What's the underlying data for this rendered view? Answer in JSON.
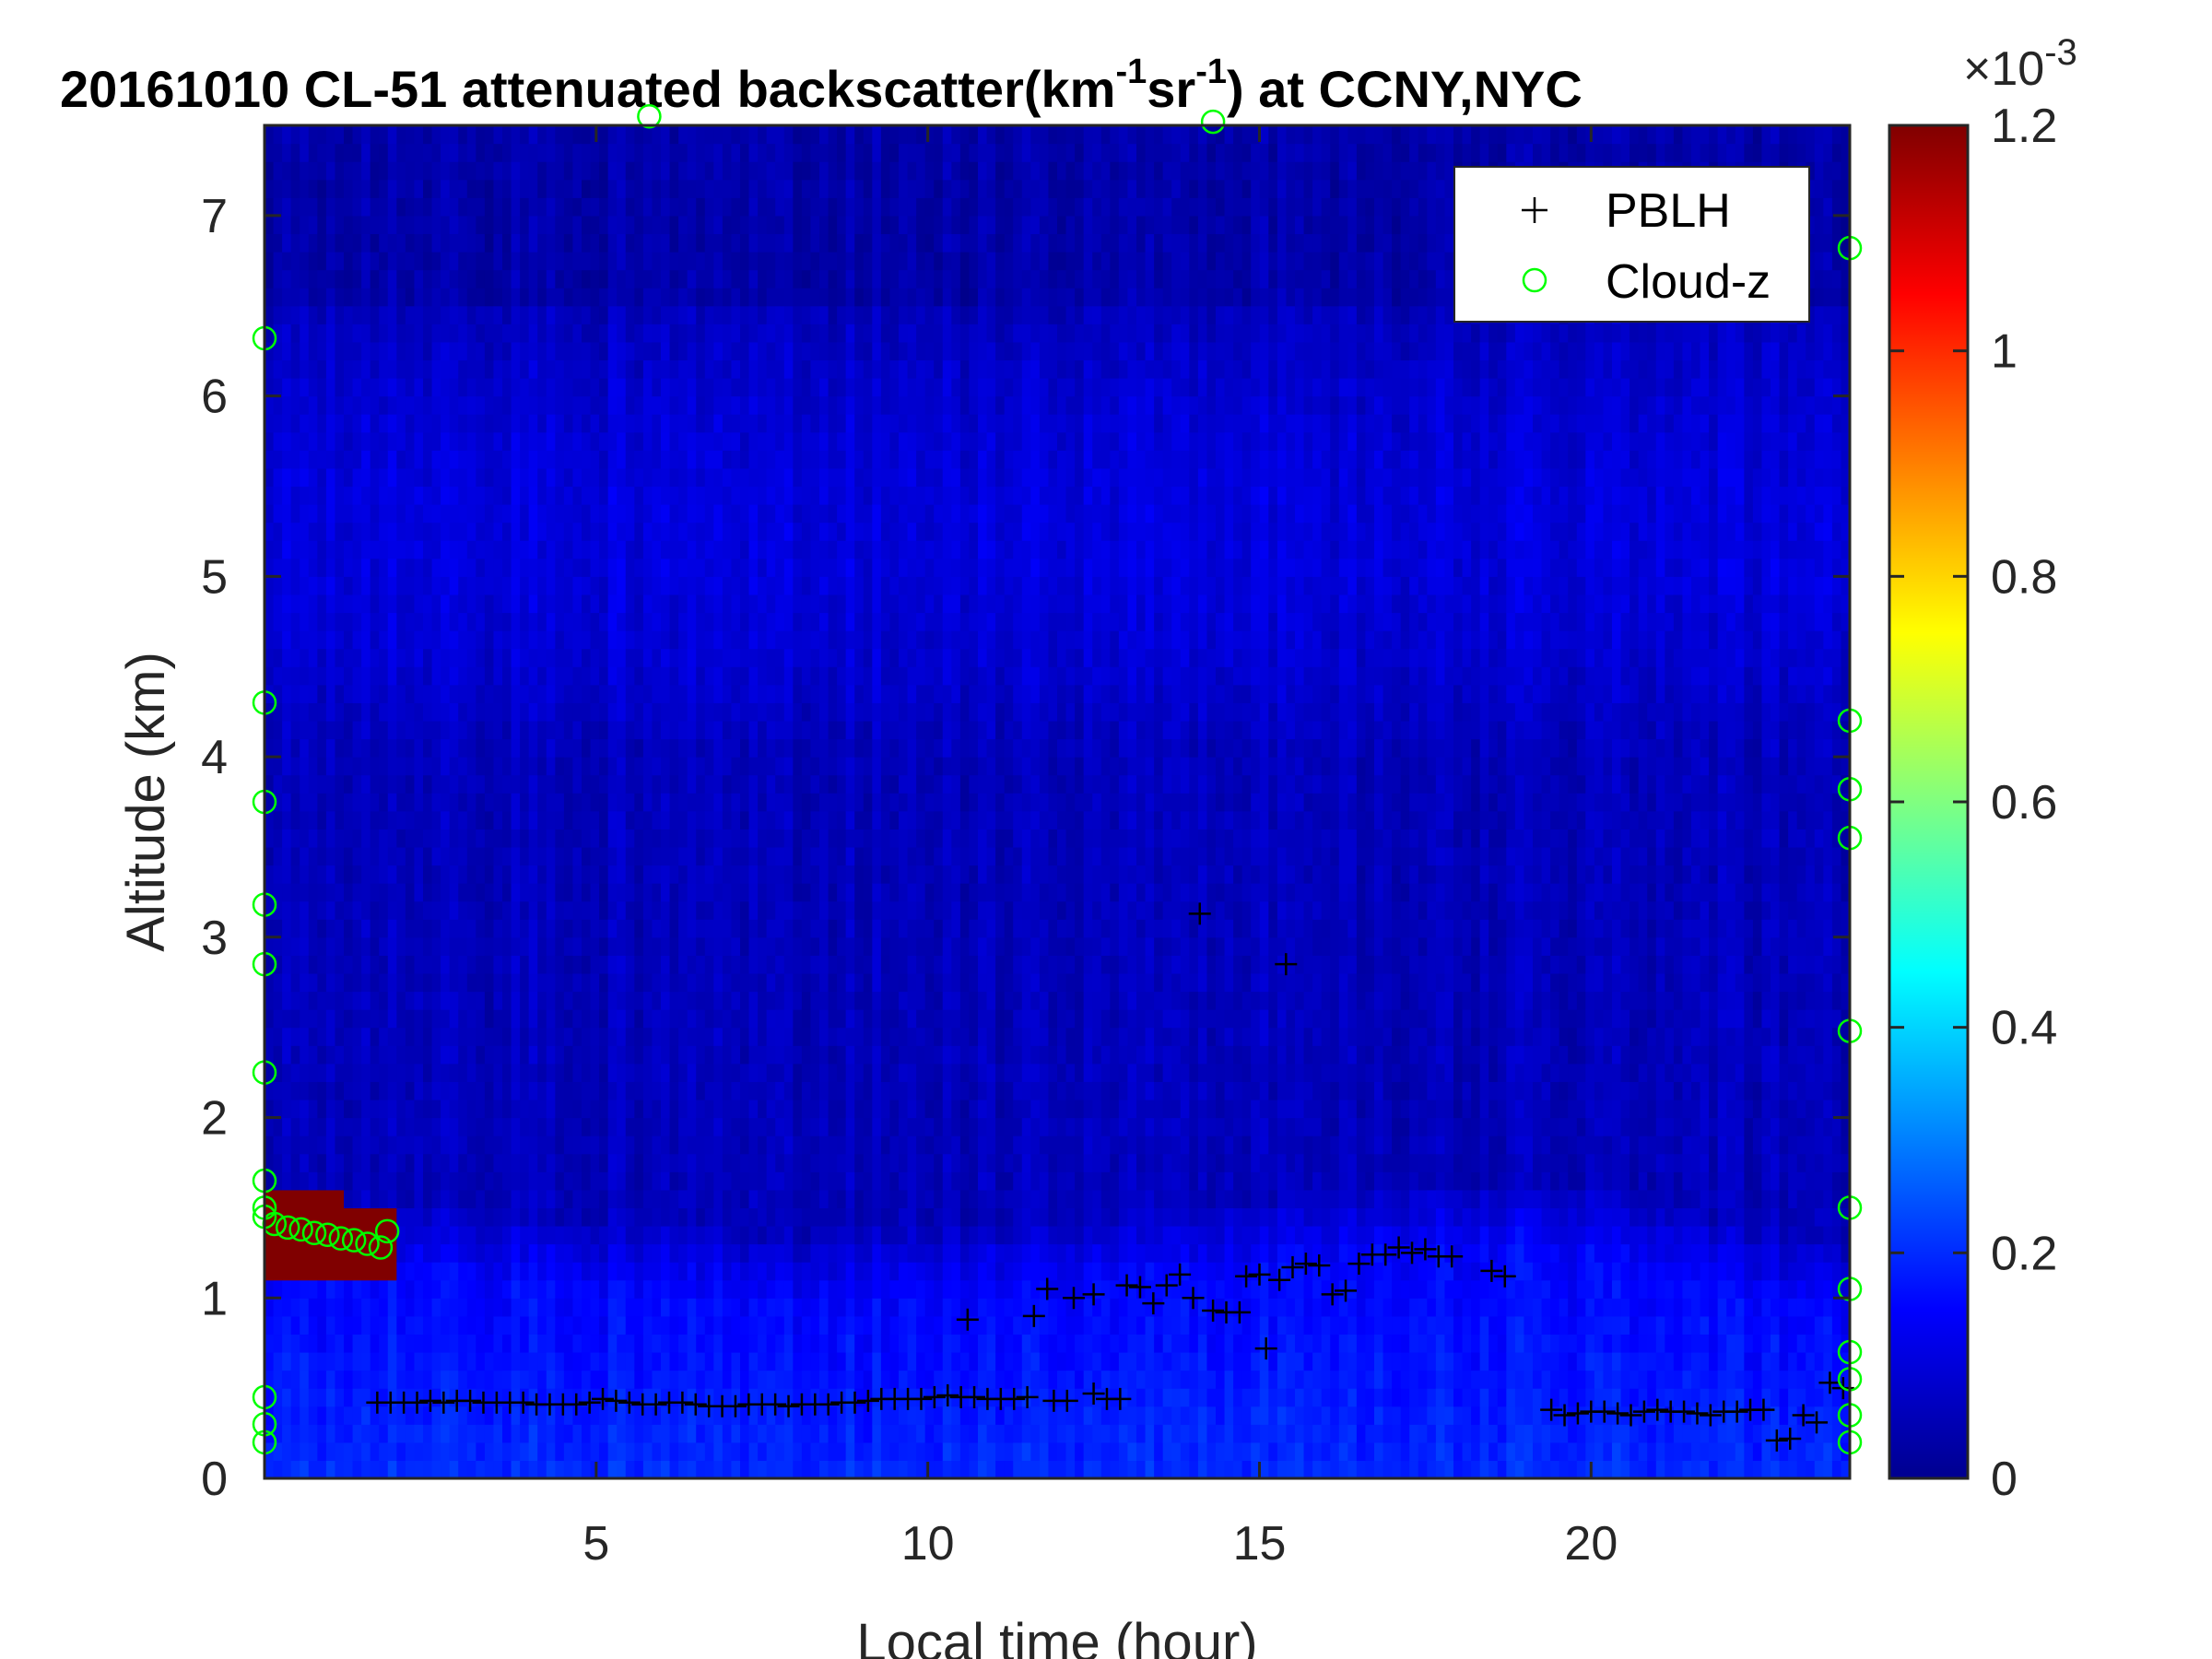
{
  "chart_data": {
    "type": "heatmap",
    "title_prefix": "20161010  CL-51 attenuated backscatter(km",
    "title_sup1": "-1",
    "title_mid": "sr",
    "title_sup2": "-1",
    "title_suffix": ") at CCNY,NYC",
    "xlabel": "Local time (hour)",
    "ylabel": "Altitude (km)",
    "xlim": [
      0,
      23.9
    ],
    "ylim": [
      0,
      7.5
    ],
    "x_ticks": [
      5,
      10,
      15,
      20
    ],
    "x_tick_labels": [
      "5",
      "10",
      "15",
      "20"
    ],
    "y_ticks": [
      0,
      1,
      2,
      3,
      4,
      5,
      6,
      7
    ],
    "y_tick_labels": [
      "0",
      "1",
      "2",
      "3",
      "4",
      "5",
      "6",
      "7"
    ],
    "colorbar": {
      "colormap": "jet",
      "range": [
        0,
        1.2
      ],
      "ticks": [
        0,
        0.2,
        0.4,
        0.6,
        0.8,
        1,
        1.2
      ],
      "tick_labels": [
        "0",
        "0.2",
        "0.4",
        "0.6",
        "0.8",
        "1",
        "1.2"
      ],
      "exponent_base": "×10",
      "exponent_power": "-3"
    },
    "legend": {
      "placement": "top-right",
      "entries": [
        {
          "label": "PBLH",
          "marker": "plus",
          "color": "#000000"
        },
        {
          "label": "Cloud-z",
          "marker": "circle",
          "color": "#00ff00"
        }
      ]
    },
    "series": [
      {
        "name": "PBLH",
        "marker": "plus",
        "points": [
          [
            1.7,
            0.42
          ],
          [
            1.9,
            0.42
          ],
          [
            2.1,
            0.42
          ],
          [
            2.3,
            0.42
          ],
          [
            2.5,
            0.43
          ],
          [
            2.7,
            0.42
          ],
          [
            2.9,
            0.43
          ],
          [
            3.1,
            0.43
          ],
          [
            3.3,
            0.42
          ],
          [
            3.5,
            0.42
          ],
          [
            3.7,
            0.42
          ],
          [
            3.9,
            0.42
          ],
          [
            4.1,
            0.41
          ],
          [
            4.3,
            0.41
          ],
          [
            4.5,
            0.41
          ],
          [
            4.7,
            0.41
          ],
          [
            4.9,
            0.42
          ],
          [
            5.1,
            0.44
          ],
          [
            5.3,
            0.43
          ],
          [
            5.5,
            0.42
          ],
          [
            5.7,
            0.41
          ],
          [
            5.9,
            0.41
          ],
          [
            6.1,
            0.42
          ],
          [
            6.3,
            0.42
          ],
          [
            6.5,
            0.41
          ],
          [
            6.7,
            0.4
          ],
          [
            6.9,
            0.4
          ],
          [
            7.1,
            0.4
          ],
          [
            7.3,
            0.41
          ],
          [
            7.5,
            0.41
          ],
          [
            7.7,
            0.41
          ],
          [
            7.9,
            0.4
          ],
          [
            8.1,
            0.41
          ],
          [
            8.3,
            0.41
          ],
          [
            8.5,
            0.41
          ],
          [
            8.7,
            0.42
          ],
          [
            8.9,
            0.42
          ],
          [
            9.1,
            0.43
          ],
          [
            9.3,
            0.44
          ],
          [
            9.5,
            0.44
          ],
          [
            9.7,
            0.44
          ],
          [
            9.9,
            0.44
          ],
          [
            10.1,
            0.45
          ],
          [
            10.3,
            0.46
          ],
          [
            10.5,
            0.45
          ],
          [
            10.7,
            0.45
          ],
          [
            10.9,
            0.44
          ],
          [
            11.1,
            0.44
          ],
          [
            11.3,
            0.44
          ],
          [
            11.5,
            0.45
          ],
          [
            11.9,
            0.43
          ],
          [
            12.1,
            0.43
          ],
          [
            12.5,
            0.47
          ],
          [
            12.7,
            0.44
          ],
          [
            12.9,
            0.44
          ],
          [
            10.6,
            0.88
          ],
          [
            11.6,
            0.9
          ],
          [
            11.8,
            1.05
          ],
          [
            12.2,
            1.0
          ],
          [
            12.5,
            1.02
          ],
          [
            13.0,
            1.07
          ],
          [
            13.2,
            1.06
          ],
          [
            13.4,
            0.97
          ],
          [
            13.6,
            1.07
          ],
          [
            13.8,
            1.13
          ],
          [
            14.0,
            1.0
          ],
          [
            14.3,
            0.93
          ],
          [
            14.5,
            0.92
          ],
          [
            14.7,
            0.92
          ],
          [
            14.8,
            1.12
          ],
          [
            15.0,
            1.13
          ],
          [
            15.3,
            1.1
          ],
          [
            15.5,
            1.17
          ],
          [
            15.7,
            1.19
          ],
          [
            15.9,
            1.18
          ],
          [
            16.1,
            1.02
          ],
          [
            16.3,
            1.04
          ],
          [
            16.5,
            1.19
          ],
          [
            16.7,
            1.24
          ],
          [
            16.9,
            1.24
          ],
          [
            17.1,
            1.28
          ],
          [
            17.3,
            1.25
          ],
          [
            17.5,
            1.27
          ],
          [
            17.7,
            1.23
          ],
          [
            17.9,
            1.23
          ],
          [
            18.5,
            1.15
          ],
          [
            18.7,
            1.12
          ],
          [
            15.1,
            0.72
          ],
          [
            14.1,
            3.13
          ],
          [
            15.4,
            2.85
          ],
          [
            19.4,
            0.38
          ],
          [
            19.6,
            0.35
          ],
          [
            19.8,
            0.36
          ],
          [
            20.0,
            0.37
          ],
          [
            20.2,
            0.37
          ],
          [
            20.4,
            0.36
          ],
          [
            20.6,
            0.35
          ],
          [
            20.8,
            0.37
          ],
          [
            21.0,
            0.38
          ],
          [
            21.2,
            0.37
          ],
          [
            21.4,
            0.37
          ],
          [
            21.6,
            0.36
          ],
          [
            21.8,
            0.35
          ],
          [
            22.0,
            0.37
          ],
          [
            22.2,
            0.37
          ],
          [
            22.4,
            0.38
          ],
          [
            22.6,
            0.38
          ],
          [
            22.8,
            0.21
          ],
          [
            23.0,
            0.22
          ],
          [
            23.2,
            0.35
          ],
          [
            23.4,
            0.31
          ],
          [
            23.6,
            0.53
          ],
          [
            23.8,
            0.5
          ]
        ]
      },
      {
        "name": "Cloud-z",
        "marker": "circle",
        "points": [
          [
            0.0,
            1.45
          ],
          [
            0.15,
            1.41
          ],
          [
            0.35,
            1.39
          ],
          [
            0.55,
            1.38
          ],
          [
            0.75,
            1.36
          ],
          [
            0.95,
            1.35
          ],
          [
            1.15,
            1.33
          ],
          [
            1.35,
            1.32
          ],
          [
            1.55,
            1.3
          ],
          [
            1.75,
            1.28
          ],
          [
            1.85,
            1.37
          ],
          [
            0.0,
            1.65
          ],
          [
            0.0,
            1.5
          ],
          [
            0.0,
            2.25
          ],
          [
            0.0,
            2.85
          ],
          [
            0.0,
            3.18
          ],
          [
            0.0,
            3.75
          ],
          [
            0.0,
            4.3
          ],
          [
            0.0,
            6.32
          ],
          [
            0.0,
            0.45
          ],
          [
            0.0,
            0.3
          ],
          [
            0.0,
            0.2
          ],
          [
            5.8,
            7.55
          ],
          [
            14.3,
            7.52
          ],
          [
            23.9,
            6.82
          ],
          [
            23.9,
            4.2
          ],
          [
            23.9,
            3.82
          ],
          [
            23.9,
            3.55
          ],
          [
            23.9,
            2.48
          ],
          [
            23.9,
            1.5
          ],
          [
            23.9,
            1.05
          ],
          [
            23.9,
            0.7
          ],
          [
            23.9,
            0.55
          ],
          [
            23.9,
            0.35
          ],
          [
            23.9,
            0.2
          ]
        ]
      }
    ],
    "layers": {
      "boundary_layer_top_km": [
        1.2,
        1.18,
        1.15,
        1.12,
        1.1,
        1.07,
        1.05,
        1.0,
        1.0,
        1.02,
        1.05,
        1.08,
        1.1,
        1.12,
        1.15,
        1.2,
        1.25,
        1.28,
        1.3,
        1.28,
        1.2,
        1.1,
        1.0,
        0.95
      ],
      "low_cloud": {
        "x_start": 0.0,
        "x_end": 1.95,
        "base_start_km": 1.12,
        "top_start_km": 1.62,
        "base_end_km": 1.06,
        "top_end_km": 1.5
      },
      "cloud_value_e3": 1.2,
      "boundary_layer_value_e3": 0.2,
      "free_troposphere_value_e3": 0.07,
      "upper_layer_value_e3": 0.11,
      "upper_layer_range_km": [
        4.0,
        6.5
      ]
    }
  }
}
